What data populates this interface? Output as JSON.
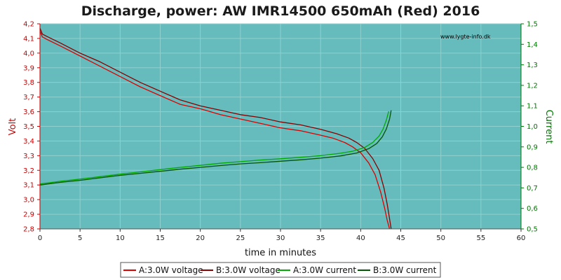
{
  "chart_data": {
    "type": "line",
    "title": "Discharge, power: AW IMR14500 650mAh (Red) 2016",
    "watermark": "www.lygte-info.dk",
    "xlabel": "time in minutes",
    "ylabel_left": "Volt",
    "ylabel_right": "Current",
    "xlim": [
      0,
      60
    ],
    "ylim_left": [
      2.8,
      4.2
    ],
    "ylim_right": [
      0.5,
      1.5
    ],
    "x_ticks": [
      "0",
      "5",
      "10",
      "15",
      "20",
      "25",
      "30",
      "35",
      "40",
      "45",
      "50",
      "55",
      "60"
    ],
    "y_left_ticks": [
      "2,8",
      "2,9",
      "3,0",
      "3,1",
      "3,2",
      "3,3",
      "3,4",
      "3,5",
      "3,6",
      "3,7",
      "3,8",
      "3,9",
      "4,0",
      "4,1",
      "4,2"
    ],
    "y_right_ticks": [
      "0,5",
      "0,6",
      "0,7",
      "0,8",
      "0,9",
      "1,0",
      "1,1",
      "1,2",
      "1,3",
      "1,4",
      "1,5"
    ],
    "grid": true,
    "legend_position": "bottom",
    "colors": {
      "plot_background": "#66bcbc",
      "grid": "#8fd0d0",
      "left_axis": "#cc0000",
      "right_axis": "#007700",
      "a_voltage": "#dd0000",
      "b_voltage": "#880000",
      "a_current": "#00aa00",
      "b_current": "#005500"
    },
    "series": [
      {
        "name": "A:3.0W voltage",
        "axis": "left",
        "color": "#dd0000",
        "x": [
          0,
          0.3,
          1,
          2.5,
          5,
          7.5,
          10,
          12.5,
          15,
          17.5,
          20,
          22.5,
          25,
          27.5,
          30,
          32.5,
          35,
          36.5,
          38,
          39,
          40,
          41,
          41.8,
          42.5,
          43,
          43.3,
          43.6
        ],
        "y": [
          4.15,
          4.11,
          4.09,
          4.05,
          3.98,
          3.91,
          3.84,
          3.77,
          3.71,
          3.65,
          3.62,
          3.58,
          3.55,
          3.52,
          3.49,
          3.47,
          3.44,
          3.42,
          3.39,
          3.36,
          3.32,
          3.25,
          3.17,
          3.05,
          2.94,
          2.86,
          2.8
        ]
      },
      {
        "name": "B:3.0W voltage",
        "axis": "left",
        "color": "#880000",
        "x": [
          0,
          0.3,
          1,
          2.5,
          5,
          7.5,
          10,
          12.5,
          15,
          17.5,
          20,
          22.5,
          25,
          27.5,
          30,
          32.5,
          35,
          37,
          38.5,
          39.5,
          40.5,
          41.5,
          42.3,
          42.9,
          43.3,
          43.6,
          43.8
        ],
        "y": [
          4.17,
          4.13,
          4.11,
          4.07,
          4.0,
          3.94,
          3.87,
          3.8,
          3.74,
          3.68,
          3.64,
          3.61,
          3.58,
          3.56,
          3.53,
          3.51,
          3.48,
          3.45,
          3.42,
          3.39,
          3.35,
          3.28,
          3.2,
          3.08,
          2.97,
          2.87,
          2.8
        ]
      },
      {
        "name": "A:3.0W current",
        "axis": "right",
        "color": "#00aa00",
        "x": [
          0,
          2.5,
          5,
          7.5,
          10,
          12.5,
          15,
          17.5,
          20,
          22.5,
          25,
          27.5,
          30,
          32.5,
          35,
          37.5,
          39,
          40.5,
          41.5,
          42.3,
          42.8,
          43.2,
          43.5
        ],
        "y": [
          0.719,
          0.732,
          0.743,
          0.755,
          0.767,
          0.778,
          0.789,
          0.8,
          0.81,
          0.82,
          0.828,
          0.836,
          0.842,
          0.849,
          0.857,
          0.869,
          0.879,
          0.897,
          0.921,
          0.953,
          0.987,
          1.03,
          1.073
        ]
      },
      {
        "name": "B:3.0W current",
        "axis": "right",
        "color": "#005500",
        "x": [
          0,
          2.5,
          5,
          7.5,
          10,
          12.5,
          15,
          17.5,
          20,
          22.5,
          25,
          27.5,
          30,
          32.5,
          35,
          37.5,
          39.5,
          41,
          42,
          42.7,
          43.2,
          43.6,
          43.8
        ],
        "y": [
          0.714,
          0.727,
          0.737,
          0.749,
          0.761,
          0.771,
          0.781,
          0.791,
          0.8,
          0.809,
          0.817,
          0.823,
          0.83,
          0.837,
          0.845,
          0.856,
          0.87,
          0.891,
          0.916,
          0.949,
          0.987,
          1.035,
          1.078
        ]
      }
    ]
  }
}
